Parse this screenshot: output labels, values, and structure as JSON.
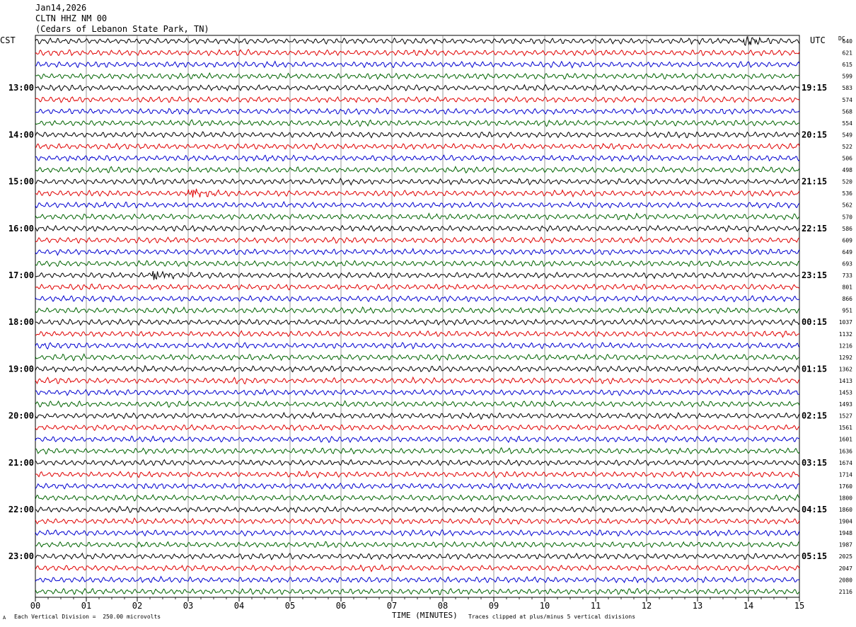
{
  "header": {
    "date": "Jan14,2026",
    "station": "CLTN HHZ NM 00",
    "site": "(Cedars of Lebanon State Park, TN)"
  },
  "chart_data": {
    "type": "line",
    "title": "",
    "left_axis_label": "CST",
    "right_axis_label": "UTC",
    "dc_label": "DC",
    "xlabel": "TIME (MINUTES)",
    "x_ticks": [
      "00",
      "01",
      "02",
      "03",
      "04",
      "05",
      "06",
      "07",
      "08",
      "09",
      "10",
      "11",
      "12",
      "13",
      "14",
      "15"
    ],
    "xlim": [
      0,
      15
    ],
    "trace_colors": [
      "#000000",
      "#e00000",
      "#0000d0",
      "#006400"
    ],
    "cst_hour_labels": [
      "13:00",
      "14:00",
      "15:00",
      "16:00",
      "17:00",
      "18:00",
      "19:00",
      "20:00",
      "21:00",
      "22:00",
      "23:00"
    ],
    "utc_hour_labels": [
      "19:15",
      "20:15",
      "21:15",
      "22:15",
      "23:15",
      "00:15",
      "01:15",
      "02:15",
      "03:15",
      "04:15",
      "05:15"
    ],
    "dc_offsets": [
      640,
      621,
      615,
      599,
      583,
      574,
      568,
      554,
      549,
      522,
      506,
      498,
      520,
      536,
      562,
      570,
      586,
      609,
      649,
      693,
      733,
      801,
      866,
      951,
      1037,
      1132,
      1216,
      1292,
      1362,
      1413,
      1453,
      1493,
      1527,
      1561,
      1601,
      1636,
      1674,
      1714,
      1760,
      1800,
      1860,
      1904,
      1948,
      1987,
      2025,
      2047,
      2080,
      2116
    ],
    "events": [
      {
        "trace": 0,
        "minute": 13.9,
        "note": "local event"
      },
      {
        "trace": 13,
        "minute": 3.0,
        "note": "burst"
      },
      {
        "trace": 20,
        "minute": 2.3,
        "note": "burst"
      }
    ]
  },
  "footer": {
    "left_note": "Each Vertical Division =  250.00 microvolts",
    "right_note": "Traces clipped at plus/minus 5 vertical divisions",
    "corner_mark": "A"
  }
}
